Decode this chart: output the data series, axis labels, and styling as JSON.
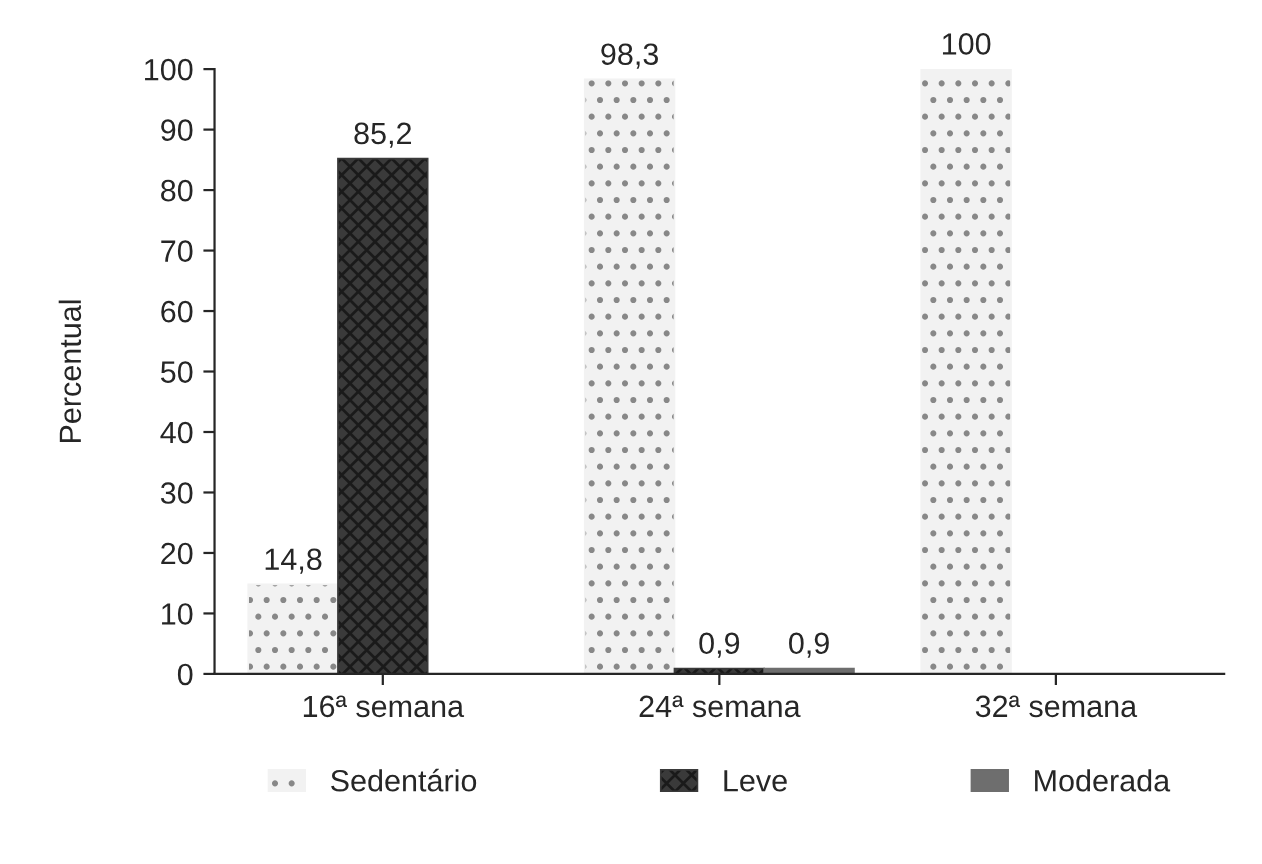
{
  "chart_data": {
    "type": "bar",
    "ylabel": "Percentual",
    "categories": [
      "16ª semana",
      "24ª semana",
      "32ª semana"
    ],
    "series": [
      {
        "name": "Sedentário",
        "color": "#f2f2f2",
        "values": [
          14.8,
          98.3,
          100
        ],
        "value_labels": [
          "14,8",
          "98,3",
          "100"
        ]
      },
      {
        "name": "Leve",
        "color": "#3a3a3a",
        "values": [
          85.2,
          0.9,
          null
        ],
        "value_labels": [
          "85,2",
          "0,9",
          null
        ]
      },
      {
        "name": "Moderada",
        "color": "#6e6e6e",
        "values": [
          null,
          0.9,
          null
        ],
        "value_labels": [
          null,
          "0,9",
          null
        ]
      }
    ],
    "ylim": [
      0,
      100
    ],
    "yticks": [
      0,
      10,
      20,
      30,
      40,
      50,
      60,
      70,
      80,
      90,
      100
    ],
    "grid": false,
    "legend": "bottom"
  }
}
